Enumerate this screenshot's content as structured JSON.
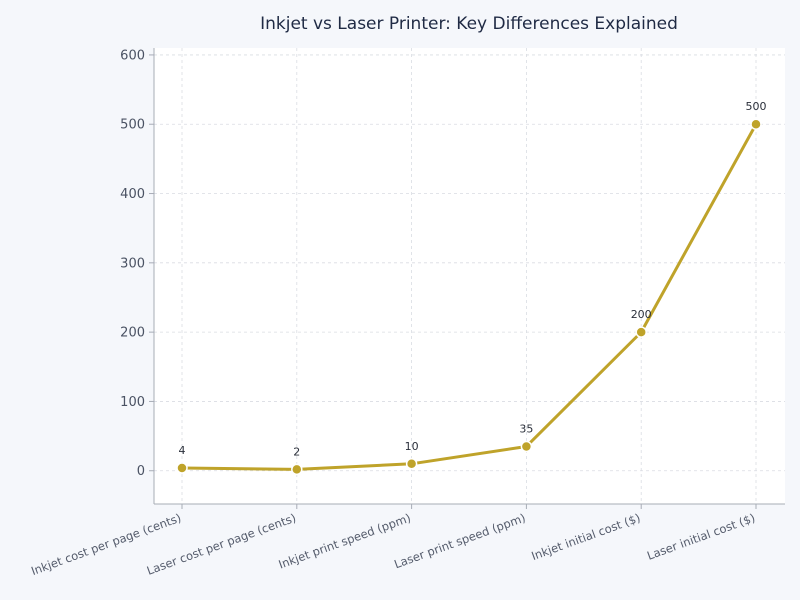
{
  "chart_data": {
    "type": "line",
    "title": "Inkjet vs Laser Printer: Key Differences Explained",
    "xlabel": "",
    "ylabel": "",
    "categories": [
      "Inkjet cost per page (cents)",
      "Laser cost per page (cents)",
      "Inkjet print speed (ppm)",
      "Laser print speed (ppm)",
      "Inkjet initial cost ($)",
      "Laser initial cost ($)"
    ],
    "series": [
      {
        "values": [
          4,
          2,
          10,
          35,
          200,
          500
        ]
      }
    ],
    "ylim": [
      -48,
      610
    ],
    "yticks": [
      0,
      100,
      200,
      300,
      400,
      500,
      600
    ],
    "data_labels": [
      "4",
      "2",
      "10",
      "35",
      "200",
      "500"
    ],
    "grid": true,
    "legend": "none",
    "colors": {
      "line": "#bfa32a",
      "background": "#f5f7fb",
      "plot_background": "#ffffff"
    }
  }
}
